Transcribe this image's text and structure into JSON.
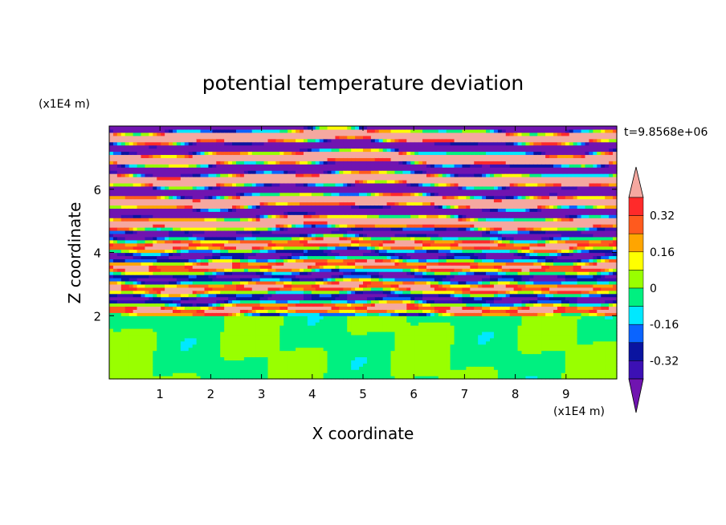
{
  "chart_data": {
    "type": "heatmap",
    "title": "potential temperature deviation",
    "xlabel": "X coordinate",
    "ylabel": "Z coordinate",
    "x_unit": "(x1E4 m)",
    "z_unit": "(x1E4 m)",
    "time_label": "t=9.8568e+06",
    "xlim": [
      0,
      10
    ],
    "ylim": [
      0,
      8
    ],
    "x_ticks": [
      1,
      2,
      3,
      4,
      5,
      6,
      7,
      8,
      9
    ],
    "y_ticks": [
      2,
      4,
      6
    ],
    "colorbar": {
      "labels": [
        "0.32",
        "0.16",
        "0",
        "-0.16",
        "-0.32"
      ],
      "label_values": [
        0.32,
        0.16,
        0,
        -0.16,
        -0.32
      ],
      "bands": [
        {
          "min": 0.4,
          "max": null,
          "color": "#f5a8a0"
        },
        {
          "min": 0.32,
          "max": 0.4,
          "color": "#ff2a2a"
        },
        {
          "min": 0.24,
          "max": 0.32,
          "color": "#ff5a1e"
        },
        {
          "min": 0.16,
          "max": 0.24,
          "color": "#ffa500"
        },
        {
          "min": 0.08,
          "max": 0.16,
          "color": "#ffff00"
        },
        {
          "min": 0.0,
          "max": 0.08,
          "color": "#99ff00"
        },
        {
          "min": -0.08,
          "max": 0.0,
          "color": "#00f080"
        },
        {
          "min": -0.16,
          "max": -0.08,
          "color": "#00e8ff"
        },
        {
          "min": -0.24,
          "max": -0.16,
          "color": "#0a64ff"
        },
        {
          "min": -0.32,
          "max": -0.24,
          "color": "#0a14a0"
        },
        {
          "min": -0.4,
          "max": -0.32,
          "color": "#3c10b4"
        },
        {
          "min": null,
          "max": -0.4,
          "color": "#7014b0"
        }
      ]
    },
    "field_summary": [
      {
        "z_range": [
          0,
          2
        ],
        "pattern": "mostly 0 to 0.08 and -0.08 to 0"
      },
      {
        "z_range": [
          2,
          5
        ],
        "pattern": "mixed layers spanning -0.40 to 0.40"
      },
      {
        "z_range": [
          5,
          8
        ],
        "pattern": "alternating bands above 0.40 and below -0.40"
      }
    ]
  }
}
